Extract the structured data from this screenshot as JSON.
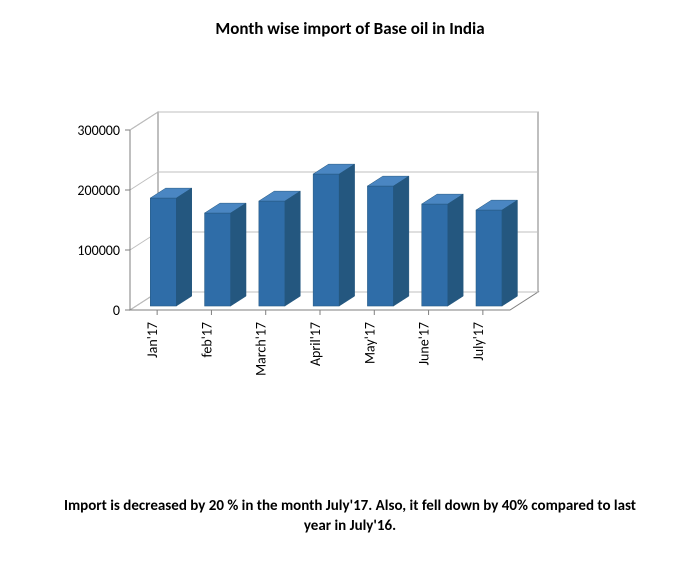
{
  "chart": {
    "type": "bar-3d",
    "title": "Month wise import of Base oil in India",
    "title_fontsize": 17,
    "categories": [
      "Jan'17",
      "feb'17",
      "March'17",
      "April'17",
      "May'17",
      "June'17",
      "July'17"
    ],
    "values": [
      180000,
      155000,
      175000,
      220000,
      200000,
      170000,
      160000
    ],
    "bar_face_color": "#2f6da8",
    "bar_top_color": "#4a86c2",
    "bar_side_color": "#24577f",
    "axis_line_color": "#7f7f7f",
    "wall_back_color": "#ffffff",
    "grid_color": "#bfbfbf",
    "ylim": [
      0,
      300000
    ],
    "ytick_step": 100000,
    "yticks": [
      "0",
      "100000",
      "200000",
      "300000"
    ],
    "label_fontsize": 14,
    "xlabel_rotation": -90,
    "depth_dx": 28,
    "depth_dy": -18,
    "bar_width_ratio": 0.48,
    "background_color": "#ffffff"
  },
  "caption": {
    "text": "Import is decreased by 20 % in the month July'17.  Also, it fell down by 40% compared to last year in July'16.",
    "fontsize": 15
  }
}
